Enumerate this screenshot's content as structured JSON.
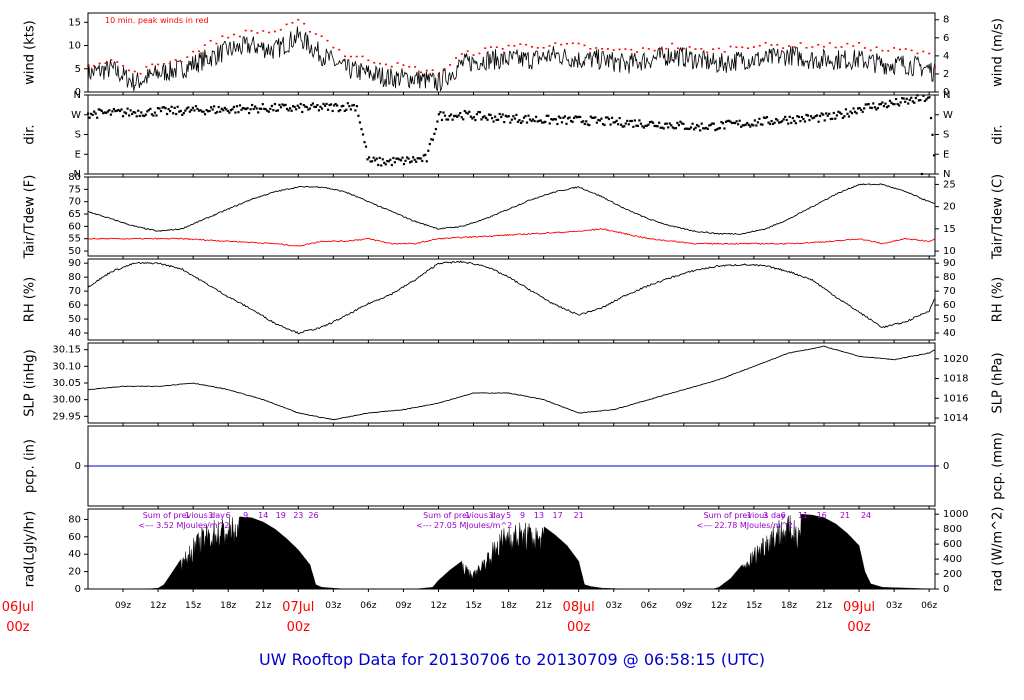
{
  "title": "UW Rooftop Data for 20130706  to  20130709 @ 06:58:15  (UTC)",
  "colors": {
    "line": "#000000",
    "peak": "#ff0000",
    "tdew": "#ff0000",
    "pcp": "#0000cc",
    "sum": "#9900cc",
    "date": "#ff0000",
    "title": "#0000cc"
  },
  "time": {
    "t0": 6.0,
    "t1": 78.5,
    "unit": "hours since 20130706 00z"
  },
  "x_axis": {
    "ticks": [
      {
        "h": 9,
        "label": "09z"
      },
      {
        "h": 12,
        "label": "12z"
      },
      {
        "h": 15,
        "label": "15z"
      },
      {
        "h": 18,
        "label": "18z"
      },
      {
        "h": 21,
        "label": "21z"
      },
      {
        "h": 24,
        "label": "00z"
      },
      {
        "h": 27,
        "label": "03z"
      },
      {
        "h": 30,
        "label": "06z"
      },
      {
        "h": 33,
        "label": "09z"
      },
      {
        "h": 36,
        "label": "12z"
      },
      {
        "h": 39,
        "label": "15z"
      },
      {
        "h": 42,
        "label": "18z"
      },
      {
        "h": 45,
        "label": "21z"
      },
      {
        "h": 48,
        "label": "00z"
      },
      {
        "h": 51,
        "label": "03z"
      },
      {
        "h": 54,
        "label": "06z"
      },
      {
        "h": 57,
        "label": "09z"
      },
      {
        "h": 60,
        "label": "12z"
      },
      {
        "h": 63,
        "label": "15z"
      },
      {
        "h": 66,
        "label": "18z"
      },
      {
        "h": 69,
        "label": "21z"
      },
      {
        "h": 72,
        "label": "00z"
      },
      {
        "h": 75,
        "label": "03z"
      },
      {
        "h": 78,
        "label": "06z"
      }
    ],
    "dates": [
      {
        "h": 0,
        "day": "06Jul",
        "hour": "00z"
      },
      {
        "h": 24,
        "day": "07Jul",
        "hour": "00z"
      },
      {
        "h": 48,
        "day": "08Jul",
        "hour": "00z"
      },
      {
        "h": 72,
        "day": "09Jul",
        "hour": "00z"
      }
    ]
  },
  "panels": [
    {
      "id": "wind",
      "left_label": "wind (kts)",
      "right_label": "wind (m/s)",
      "left_range": [
        0,
        17
      ],
      "left_ticks": [
        0,
        5,
        10,
        15
      ],
      "right_range": [
        0,
        8.745
      ],
      "right_ticks": [
        0,
        2,
        4,
        6,
        8
      ],
      "annotation": "10 min. peak winds in red"
    },
    {
      "id": "dir",
      "left_label": "dir.",
      "right_label": "dir.",
      "left_range": [
        0,
        360
      ],
      "left_ticks": [
        {
          "v": 0,
          "label": "N"
        },
        {
          "v": 90,
          "label": "E"
        },
        {
          "v": 180,
          "label": "S"
        },
        {
          "v": 270,
          "label": "W"
        },
        {
          "v": 360,
          "label": "N"
        }
      ],
      "right_range": [
        0,
        360
      ],
      "right_ticks": [
        {
          "v": 0,
          "label": "N"
        },
        {
          "v": 90,
          "label": "E"
        },
        {
          "v": 180,
          "label": "S"
        },
        {
          "v": 270,
          "label": "W"
        },
        {
          "v": 360,
          "label": "N"
        }
      ]
    },
    {
      "id": "temp",
      "left_label": "Tair/Tdew (F)",
      "right_label": "Tair/Tdew (C)",
      "left_range": [
        48,
        80
      ],
      "left_ticks": [
        50,
        55,
        60,
        65,
        70,
        75,
        80
      ],
      "right_range": [
        8.89,
        26.67
      ],
      "right_ticks": [
        10,
        15,
        20,
        25
      ]
    },
    {
      "id": "rh",
      "left_label": "RH (%)",
      "right_label": "RH (%)",
      "left_range": [
        35,
        93
      ],
      "left_ticks": [
        40,
        50,
        60,
        70,
        80,
        90
      ],
      "right_range": [
        35,
        93
      ],
      "right_ticks": [
        40,
        50,
        60,
        70,
        80,
        90
      ]
    },
    {
      "id": "slp",
      "left_label": "SLP (inHg)",
      "right_label": "SLP (hPa)",
      "left_range": [
        29.93,
        30.17
      ],
      "left_ticks": [
        {
          "v": 29.95,
          "label": "29.95"
        },
        {
          "v": 30.0,
          "label": "30.00"
        },
        {
          "v": 30.05,
          "label": "30.05"
        },
        {
          "v": 30.1,
          "label": "30.10"
        },
        {
          "v": 30.15,
          "label": "30.15"
        }
      ],
      "right_range": [
        1013.5,
        1021.6
      ],
      "right_ticks": [
        1014,
        1016,
        1018,
        1020
      ]
    },
    {
      "id": "pcp",
      "left_label": "pcp. (in)",
      "right_label": "pcp. (mm)",
      "left_range": [
        -1,
        1
      ],
      "left_ticks": [
        0
      ],
      "right_range": [
        -1,
        1
      ],
      "right_ticks": [
        0
      ]
    },
    {
      "id": "rad",
      "left_label": "rad(Lgly/hr)",
      "right_label": "rad (W/m^2)",
      "left_range": [
        0,
        92
      ],
      "left_ticks": [
        0,
        20,
        40,
        60,
        80
      ],
      "right_range": [
        0,
        1070
      ],
      "right_ticks": [
        0,
        200,
        400,
        600,
        800,
        1000
      ],
      "daily_sums": [
        {
          "h": 0,
          "line1": "Sum of previous day",
          "line2": "<--- 3.52 MJoules/m^2"
        },
        {
          "h": 24,
          "line1": "Sum of previous day",
          "line2": "<--- 27.05 MJoules/m^2"
        },
        {
          "h": 48,
          "line1": "Sum of previous day",
          "line2": "<--- 22.78 MJoules/m^2"
        }
      ],
      "hour_markers": [
        {
          "h": 14.5,
          "label": "1"
        },
        {
          "h": 16.5,
          "label": "3"
        },
        {
          "h": 18,
          "label": "6"
        },
        {
          "h": 19.5,
          "label": "9"
        },
        {
          "h": 21,
          "label": "14"
        },
        {
          "h": 22.5,
          "label": "19"
        },
        {
          "h": 24,
          "label": "23"
        },
        {
          "h": 25.3,
          "label": "26"
        },
        {
          "h": 38.5,
          "label": "1"
        },
        {
          "h": 40.5,
          "label": "3"
        },
        {
          "h": 42,
          "label": "5"
        },
        {
          "h": 43.2,
          "label": "9"
        },
        {
          "h": 44.6,
          "label": "13"
        },
        {
          "h": 46.2,
          "label": "17"
        },
        {
          "h": 48,
          "label": "21"
        },
        {
          "h": 62.6,
          "label": "1"
        },
        {
          "h": 64,
          "label": "3"
        },
        {
          "h": 65.5,
          "label": "6"
        },
        {
          "h": 67.2,
          "label": "11"
        },
        {
          "h": 68.8,
          "label": "16"
        },
        {
          "h": 70.8,
          "label": "21"
        },
        {
          "h": 72.6,
          "label": "24"
        }
      ]
    }
  ],
  "chart_data": {
    "type": "line",
    "x_unit": "hours since 20130706 00z",
    "series": [
      {
        "name": "wind (kts)",
        "x": [
          6,
          8,
          10,
          12,
          14,
          16,
          18,
          20,
          22,
          24,
          26,
          28,
          30,
          32,
          34,
          36,
          38,
          40,
          42,
          44,
          46,
          48,
          50,
          52,
          54,
          56,
          58,
          60,
          62,
          64,
          66,
          68,
          70,
          72,
          74,
          76,
          78,
          78.5
        ],
        "y": [
          4,
          5,
          2,
          4,
          5,
          7,
          9,
          10,
          9,
          12,
          8,
          5,
          4,
          3,
          3,
          2,
          6,
          7,
          7,
          7,
          8,
          7,
          7,
          6,
          7,
          8,
          7,
          6,
          7,
          7,
          8,
          7,
          7,
          7,
          6,
          6,
          5,
          4
        ]
      },
      {
        "name": "10 min. peak winds in red",
        "x": [
          6,
          8,
          10,
          12,
          14,
          16,
          18,
          20,
          22,
          24,
          26,
          28,
          30,
          32,
          34,
          36,
          38,
          40,
          42,
          44,
          46,
          48,
          50,
          52,
          54,
          56,
          58,
          60,
          62,
          64,
          66,
          68,
          70,
          72,
          74,
          76,
          78,
          78.5
        ],
        "y": [
          6,
          7,
          4,
          6,
          7,
          10,
          12,
          13,
          13,
          15,
          12,
          8,
          7,
          6,
          5,
          4,
          8,
          9,
          10,
          10,
          10,
          10,
          9,
          9,
          9,
          10,
          9,
          9,
          10,
          10,
          10,
          10,
          10,
          10,
          9,
          9,
          8,
          6
        ]
      },
      {
        "name": "dir.",
        "x": [
          6,
          9,
          12,
          15,
          18,
          21,
          24,
          27,
          29,
          30,
          31,
          33,
          35,
          36,
          38,
          40,
          42,
          44,
          46,
          48,
          50,
          52,
          54,
          56,
          58,
          60,
          62,
          64,
          66,
          68,
          70,
          72,
          74,
          76,
          78,
          78.5
        ],
        "y": [
          275,
          280,
          285,
          290,
          295,
          300,
          300,
          305,
          310,
          60,
          55,
          60,
          70,
          265,
          270,
          260,
          255,
          250,
          245,
          245,
          240,
          235,
          230,
          225,
          215,
          220,
          230,
          240,
          250,
          255,
          260,
          300,
          315,
          330,
          350,
          20
        ]
      },
      {
        "name": "Tair",
        "x": [
          6,
          8,
          10,
          12,
          14,
          16,
          18,
          20,
          22,
          24,
          26,
          28,
          30,
          32,
          34,
          36,
          38,
          40,
          42,
          44,
          46,
          48,
          50,
          52,
          54,
          56,
          58,
          60,
          62,
          64,
          66,
          68,
          70,
          72,
          74,
          76,
          78,
          78.5
        ],
        "y": [
          66,
          63,
          60,
          58,
          59,
          63,
          67,
          71,
          74,
          76,
          76,
          74,
          70,
          66,
          62,
          59,
          60,
          63,
          67,
          71,
          74,
          76,
          72,
          67,
          63,
          60,
          58,
          57,
          57,
          59,
          63,
          68,
          73,
          77,
          77,
          74,
          70,
          69
        ]
      },
      {
        "name": "Tdew",
        "x": [
          6,
          10,
          14,
          18,
          22,
          24,
          26,
          28,
          30,
          32,
          34,
          36,
          40,
          44,
          48,
          50,
          52,
          54,
          58,
          62,
          66,
          70,
          72,
          74,
          76,
          78,
          78.5
        ],
        "y": [
          55,
          55,
          55,
          54,
          53,
          52,
          54,
          54,
          55,
          53,
          53,
          55,
          56,
          57,
          58,
          59,
          57,
          55,
          53,
          53,
          53,
          54,
          55,
          53,
          55,
          54,
          55
        ]
      },
      {
        "name": "RH (%)",
        "x": [
          6,
          8,
          10,
          12,
          14,
          16,
          18,
          20,
          22,
          24,
          26,
          28,
          30,
          32,
          34,
          36,
          38,
          40,
          42,
          44,
          46,
          48,
          50,
          52,
          54,
          56,
          58,
          60,
          62,
          64,
          66,
          68,
          70,
          72,
          74,
          76,
          78,
          78.5
        ],
        "y": [
          73,
          84,
          90,
          90,
          86,
          76,
          66,
          57,
          47,
          40,
          44,
          52,
          61,
          68,
          78,
          90,
          91,
          88,
          80,
          70,
          60,
          53,
          58,
          67,
          74,
          80,
          85,
          88,
          89,
          88,
          84,
          78,
          66,
          55,
          44,
          48,
          56,
          65
        ]
      },
      {
        "name": "SLP (inHg)",
        "x": [
          6,
          9,
          12,
          15,
          18,
          21,
          24,
          27,
          30,
          33,
          36,
          39,
          42,
          45,
          48,
          51,
          54,
          57,
          60,
          63,
          66,
          69,
          72,
          75,
          78,
          78.5
        ],
        "y": [
          30.03,
          30.04,
          30.04,
          30.05,
          30.03,
          30.0,
          29.96,
          29.94,
          29.96,
          29.97,
          29.99,
          30.02,
          30.02,
          30.0,
          29.96,
          29.97,
          30.0,
          30.03,
          30.06,
          30.1,
          30.14,
          30.16,
          30.13,
          30.12,
          30.14,
          30.15
        ]
      },
      {
        "name": "pcp. (in)",
        "x": [
          6,
          78.5
        ],
        "y": [
          0,
          0
        ]
      },
      {
        "name": "rad(Lgly/hr)",
        "x": [
          6,
          11,
          12,
          12.5,
          13,
          14,
          15,
          16,
          17,
          18,
          19,
          20,
          21,
          22,
          23,
          24,
          25,
          25.5,
          26,
          28,
          34,
          35.5,
          36,
          37,
          38,
          39,
          40,
          41,
          42,
          42.5,
          43,
          44,
          45,
          46,
          47,
          48,
          48.5,
          49,
          50,
          52,
          59.5,
          60,
          61,
          62,
          63,
          64,
          65,
          66,
          67,
          68,
          69,
          70,
          71,
          72,
          72.5,
          73,
          74,
          78.5
        ],
        "y": [
          0,
          0,
          1,
          5,
          15,
          35,
          58,
          75,
          82,
          84,
          83,
          82,
          77,
          69,
          58,
          45,
          28,
          5,
          2,
          0,
          0,
          2,
          10,
          22,
          32,
          20,
          40,
          62,
          80,
          76,
          78,
          76,
          72,
          62,
          50,
          32,
          5,
          3,
          1,
          0,
          0,
          2,
          12,
          28,
          48,
          68,
          82,
          85,
          86,
          85,
          82,
          75,
          64,
          50,
          20,
          6,
          2,
          0
        ]
      }
    ],
    "annotations": [
      "Sum of previous day <--- 3.52 MJoules/m^2",
      "Sum of previous day <--- 27.05 MJoules/m^2",
      "Sum of previous day <--- 22.78 MJoules/m^2"
    ]
  }
}
